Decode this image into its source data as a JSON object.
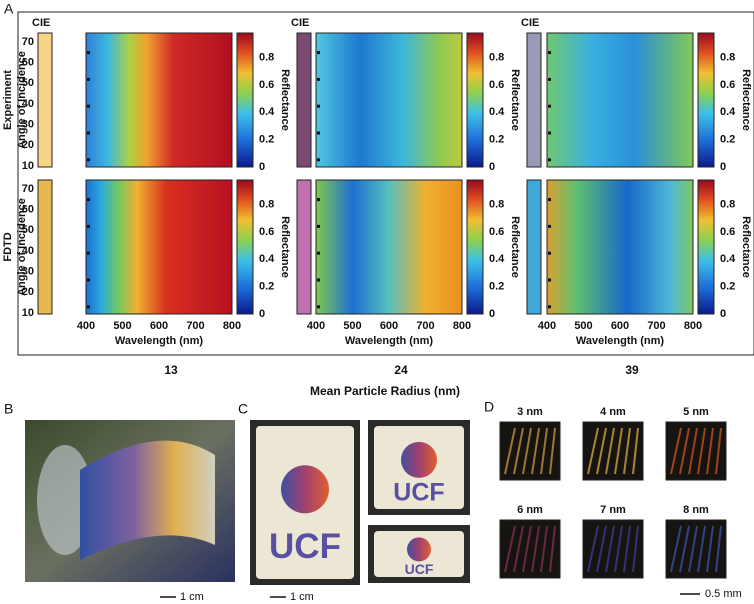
{
  "panel_a": {
    "label": "A",
    "row_labels": [
      "Experiment",
      "FDTD"
    ],
    "cie_label": "CIE",
    "y_axis_label": "Angle of Incidence",
    "x_axis_label": "Wavelength (nm)",
    "colorbar_label": "Reflectance",
    "yticks": [
      10,
      20,
      30,
      40,
      50,
      60,
      70
    ],
    "xticks": [
      400,
      500,
      600,
      700,
      800
    ],
    "colorbar_ticks": [
      0,
      0.2,
      0.4,
      0.6,
      0.8
    ],
    "radii": [
      13,
      24,
      39
    ],
    "radius_axis_label": "Mean Particle Radius (nm)"
  },
  "panel_b": {
    "label": "B",
    "scale": "1 cm"
  },
  "panel_c": {
    "label": "C",
    "scale": "1 cm",
    "logo_text": "UCF"
  },
  "panel_d": {
    "label": "D",
    "sizes": [
      "3 nm",
      "4 nm",
      "5 nm",
      "6 nm",
      "7 nm",
      "8 nm"
    ],
    "scale": "0.5 mm"
  }
}
